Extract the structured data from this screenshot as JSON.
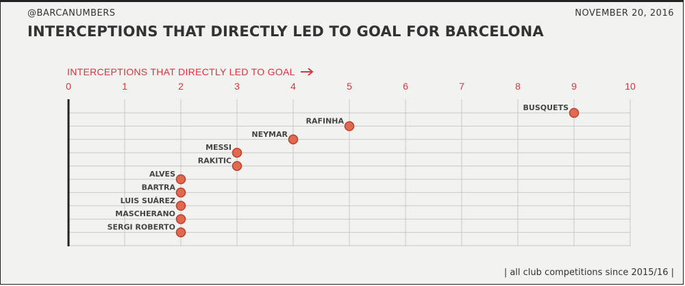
{
  "header": {
    "handle": "@BARCANUMBERS",
    "date": "NOVEMBER 20, 2016",
    "title": "INTERCEPTIONS THAT DIRECTLY LED TO GOAL FOR BARCELONA"
  },
  "footer": {
    "note": "| all club competitions since 2015/16 |"
  },
  "colors": {
    "accent": "#d9333b",
    "dot_fill": "#e06a4f",
    "dot_stroke": "#b8412e",
    "grid": "#c8c8c8",
    "text": "#333333"
  },
  "chart_data": {
    "type": "scatter",
    "title": "INTERCEPTIONS THAT DIRECTLY LED TO GOAL FOR BARCELONA",
    "xlabel": "INTERCEPTIONS THAT DIRECTLY LED TO GOAL",
    "ylabel": "",
    "xlim": [
      0,
      10
    ],
    "xticks": [
      0,
      1,
      2,
      3,
      4,
      5,
      6,
      7,
      8,
      9,
      10
    ],
    "x_axis_position": "top",
    "grid": true,
    "legend": "none",
    "points": [
      {
        "player": "BUSQUETS",
        "value": 9
      },
      {
        "player": "RAFINHA",
        "value": 5
      },
      {
        "player": "NEYMAR",
        "value": 4
      },
      {
        "player": "MESSI",
        "value": 3
      },
      {
        "player": "RAKITIC",
        "value": 3
      },
      {
        "player": "ALVES",
        "value": 2
      },
      {
        "player": "BARTRA",
        "value": 2
      },
      {
        "player": "LUIS SUÁREZ",
        "value": 2
      },
      {
        "player": "MASCHERANO",
        "value": 2
      },
      {
        "player": "SERGI ROBERTO",
        "value": 2
      }
    ]
  }
}
